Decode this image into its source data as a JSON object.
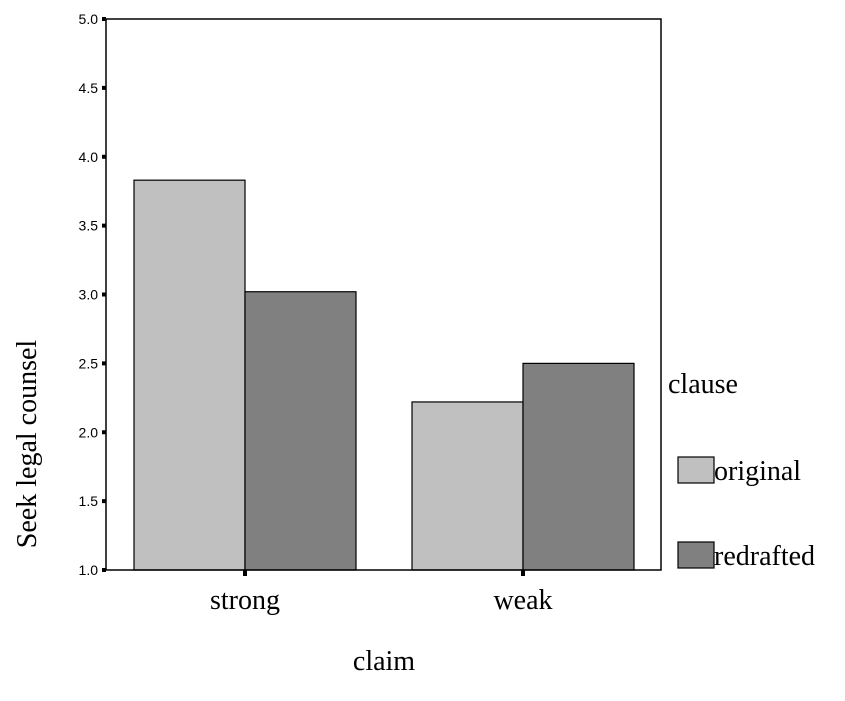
{
  "chart_data": {
    "type": "bar",
    "title": "",
    "xlabel": "claim",
    "ylabel": "Seek legal counsel",
    "categories": [
      "strong",
      "weak"
    ],
    "ylim": [
      1.0,
      5.0
    ],
    "yticks": [
      "1.0",
      "1.5",
      "2.0",
      "2.5",
      "3.0",
      "3.5",
      "4.0",
      "4.5",
      "5.0"
    ],
    "legend_title": "clause",
    "legend_position": "right",
    "grid": false,
    "series": [
      {
        "name": "original",
        "color": "#c0c0c0",
        "values": [
          3.83,
          2.22
        ]
      },
      {
        "name": "redrafted",
        "color": "#808080",
        "values": [
          3.02,
          2.5
        ]
      }
    ]
  }
}
